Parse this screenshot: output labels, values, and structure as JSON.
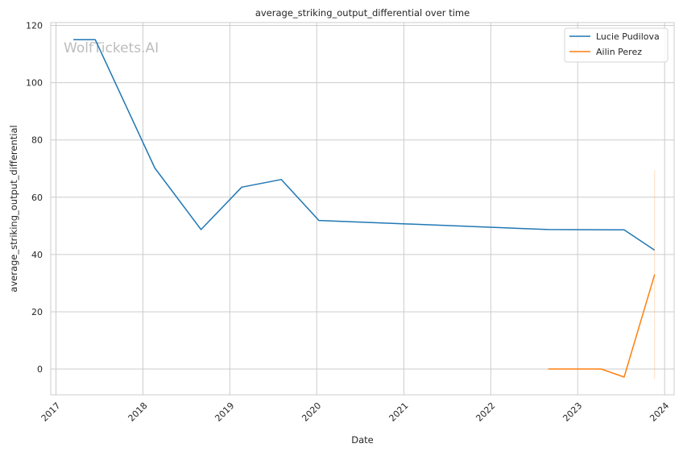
{
  "chart_data": {
    "type": "line",
    "title": "average_striking_output_differential over time",
    "xlabel": "Date",
    "ylabel": "average_striking_output_differential",
    "watermark": "WolfTickets.AI",
    "x_ticks": [
      "2017",
      "2018",
      "2019",
      "2020",
      "2021",
      "2022",
      "2023",
      "2024"
    ],
    "y_ticks": [
      "0",
      "20",
      "40",
      "60",
      "80",
      "100",
      "120"
    ],
    "xlim": [
      "2016-12-10",
      "2024-02-10"
    ],
    "ylim": [
      -9,
      121
    ],
    "grid": true,
    "legend_position": "top-right",
    "series": [
      {
        "name": "Lucie Pudilova",
        "color": "#1f77b4",
        "points": [
          [
            "2017-03-15",
            115
          ],
          [
            "2017-06-15",
            115
          ],
          [
            "2018-02-20",
            70.2
          ],
          [
            "2018-09-02",
            48.7
          ],
          [
            "2019-02-20",
            63.5
          ],
          [
            "2019-08-05",
            66.2
          ],
          [
            "2020-01-10",
            51.9
          ],
          [
            "2022-08-30",
            48.7
          ],
          [
            "2023-07-15",
            48.6
          ],
          [
            "2023-11-20",
            41.5
          ]
        ]
      },
      {
        "name": "Ailin Perez",
        "color": "#ff7f0e",
        "points": [
          [
            "2022-08-30",
            0
          ],
          [
            "2023-04-10",
            0
          ],
          [
            "2023-07-15",
            -2.8
          ],
          [
            "2023-11-20",
            33
          ]
        ],
        "errorbar": {
          "x": "2023-11-20",
          "low": -3.5,
          "high": 69.5
        }
      }
    ]
  }
}
